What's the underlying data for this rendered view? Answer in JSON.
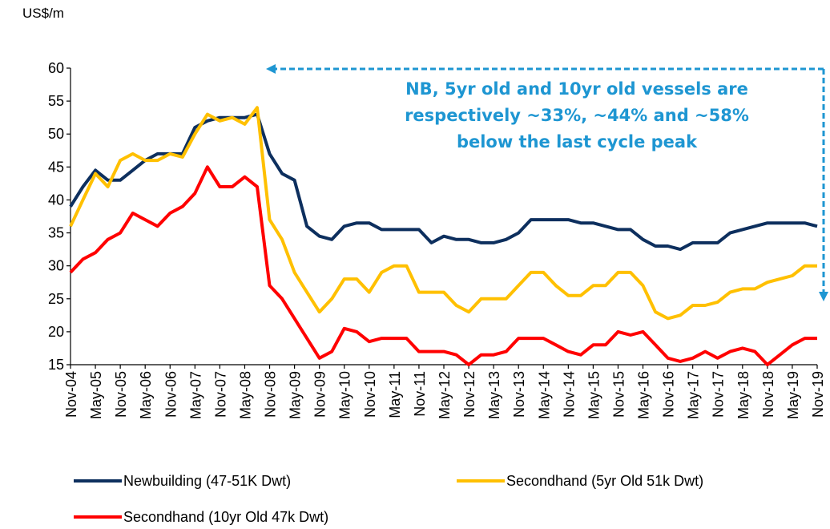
{
  "chart_data": {
    "type": "line",
    "y_unit_label": "US$/m",
    "annotation": [
      "NB, 5yr old and 10yr old vessels are",
      "respectively ~33%, ~44% and ~58%",
      "below the last cycle peak"
    ],
    "categories": [
      "Nov-04",
      null,
      "May-05",
      null,
      "Nov-05",
      null,
      "May-06",
      null,
      "Nov-06",
      null,
      "May-07",
      null,
      "Nov-07",
      null,
      "May-08",
      null,
      "Nov-08",
      null,
      "May-09",
      null,
      "Nov-09",
      null,
      "May-10",
      null,
      "Nov-10",
      null,
      "May-11",
      null,
      "Nov-11",
      null,
      "May-12",
      null,
      "Nov-12",
      null,
      "May-13",
      null,
      "Nov-13",
      null,
      "May-14",
      null,
      "Nov-14",
      null,
      "May-15",
      null,
      "Nov-15",
      null,
      "May-16",
      null,
      "Nov-16",
      null,
      "May-17",
      null,
      "Nov-17",
      null,
      "May-18",
      null,
      "Nov-18",
      null,
      "May-19",
      null,
      "Nov-19"
    ],
    "series": [
      {
        "name": "Newbuilding (47-51K Dwt)",
        "color": "#0d2f5e",
        "values": [
          39,
          42,
          44.5,
          43,
          43,
          44.5,
          46,
          47,
          47,
          47,
          51,
          52,
          52.5,
          52.5,
          52.5,
          53,
          47,
          44,
          43,
          36,
          34.5,
          34,
          36,
          36.5,
          36.5,
          35.5,
          35.5,
          35.5,
          35.5,
          33.5,
          34.5,
          34,
          34,
          33.5,
          33.5,
          34,
          35,
          37,
          37,
          37,
          37,
          36.5,
          36.5,
          36,
          35.5,
          35.5,
          34,
          33,
          33,
          32.5,
          33.5,
          33.5,
          33.5,
          35,
          35.5,
          36,
          36.5,
          36.5,
          36.5,
          36.5,
          36
        ]
      },
      {
        "name": "Secondhand (5yr Old 51k Dwt)",
        "color": "#ffc000",
        "values": [
          36,
          40,
          44,
          42,
          46,
          47,
          46,
          46,
          47,
          46.5,
          50,
          53,
          52,
          52.5,
          51.5,
          54,
          37,
          34,
          29,
          26,
          23,
          25,
          28,
          28,
          26,
          29,
          30,
          30,
          26,
          26,
          26,
          24,
          23,
          25,
          25,
          25,
          27,
          29,
          29,
          27,
          25.5,
          25.5,
          27,
          27,
          29,
          29,
          27,
          23,
          22,
          22.5,
          24,
          24,
          24.5,
          26,
          26.5,
          26.5,
          27.5,
          28,
          28.5,
          30,
          30
        ]
      },
      {
        "name": "Secondhand (10yr Old 47k Dwt)",
        "color": "#ff0000",
        "values": [
          29,
          31,
          32,
          34,
          35,
          38,
          37,
          36,
          38,
          39,
          41,
          45,
          42,
          42,
          43.5,
          42,
          27,
          25,
          22,
          19,
          16,
          17,
          20.5,
          20,
          18.5,
          19,
          19,
          19,
          17,
          17,
          17,
          16.5,
          15,
          16.5,
          16.5,
          17,
          19,
          19,
          19,
          18,
          17,
          16.5,
          18,
          18,
          20,
          19.5,
          20,
          18,
          16,
          15.5,
          16,
          17,
          16,
          17,
          17.5,
          17,
          15,
          16.5,
          18,
          19,
          19
        ]
      }
    ],
    "ylim": [
      15,
      60
    ],
    "yticks": [
      15,
      20,
      25,
      30,
      35,
      40,
      45,
      50,
      55,
      60
    ]
  }
}
